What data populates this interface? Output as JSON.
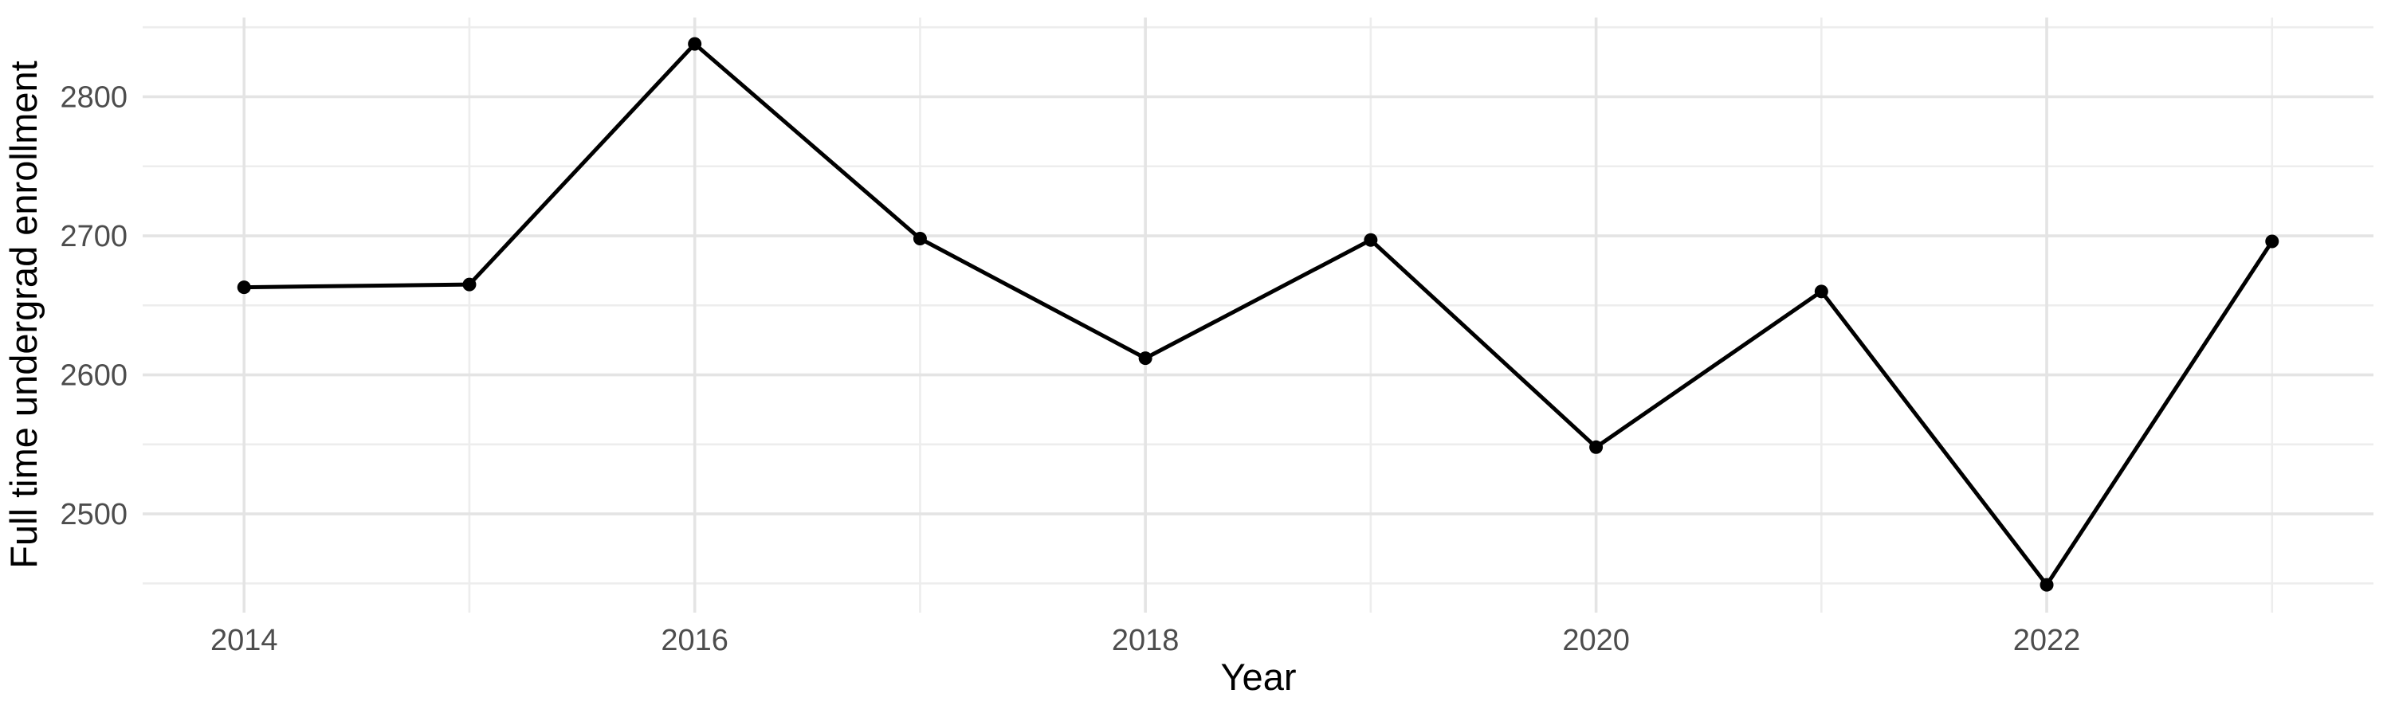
{
  "chart_data": {
    "type": "line",
    "title": "",
    "xlabel": "Year",
    "ylabel": "Full time undergrad enrollment",
    "x": [
      2014,
      2015,
      2016,
      2017,
      2018,
      2019,
      2020,
      2021,
      2022,
      2023
    ],
    "values": [
      2663,
      2665,
      2838,
      2698,
      2612,
      2697,
      2548,
      2660,
      2449,
      2696
    ],
    "series_name": "Full time undergrad enrollment",
    "x_major_ticks": [
      2014,
      2016,
      2018,
      2020,
      2022
    ],
    "x_minor_ticks": [
      2015,
      2017,
      2019,
      2021,
      2023
    ],
    "y_major_ticks": [
      2500,
      2600,
      2700,
      2800
    ],
    "y_minor_ticks": [
      2450,
      2550,
      2650,
      2750,
      2850
    ],
    "xlim": [
      2013.55,
      2023.45
    ],
    "ylim": [
      2429,
      2857
    ],
    "grid": "major and minor, no axis lines, no tick marks",
    "legend_position": "none",
    "line_color": "#000000",
    "point_color": "#000000",
    "tick_label_color": "#4d4d4d",
    "axis_title_color": "#000000",
    "grid_major_color": "#e4e4e4",
    "grid_minor_color": "#ededed",
    "background_color": "#ffffff"
  }
}
